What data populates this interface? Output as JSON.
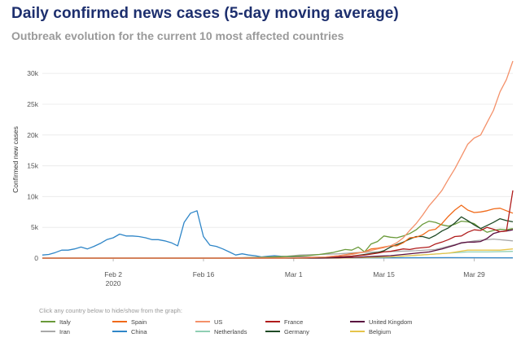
{
  "header": {
    "title": "Daily confirmed news cases (5-day moving average)",
    "subtitle": "Outbreak evolution for the current 10 most affected countries",
    "legend_hint": "Click any country below to hide/show from the graph:"
  },
  "colors": {
    "Italy": "#6a9a3a",
    "Spain": "#f06a1a",
    "US": "#f4916a",
    "France": "#b01c1c",
    "United Kingdom": "#5a1040",
    "Iran": "#a9a9a9",
    "China": "#2f86c8",
    "Netherlands": "#8fcfb4",
    "Germany": "#1f4a26",
    "Belgium": "#e6c44a"
  },
  "chart_data": {
    "type": "line",
    "title": "Daily confirmed news cases (5-day moving average)",
    "subtitle": "Outbreak evolution for the current 10 most affected countries",
    "xlabel": "",
    "ylabel": "Confirmed new cases",
    "x_ticks": [
      "Feb 2",
      "Feb 16",
      "Mar 1",
      "Mar 15",
      "Mar 29"
    ],
    "x_tick_sub": "2020",
    "y_ticks": [
      "0",
      "5k",
      "10k",
      "15k",
      "20k",
      "25k",
      "30k"
    ],
    "ylim": [
      0,
      32000
    ],
    "x_range": [
      "2020-01-22",
      "2020-04-04"
    ],
    "grid": "horizontal",
    "legend_position": "bottom",
    "series": [
      {
        "name": "China",
        "points": [
          [
            "2020-01-22",
            500
          ],
          [
            "2020-01-23",
            600
          ],
          [
            "2020-01-24",
            900
          ],
          [
            "2020-01-25",
            1300
          ],
          [
            "2020-01-26",
            1300
          ],
          [
            "2020-01-27",
            1500
          ],
          [
            "2020-01-28",
            1800
          ],
          [
            "2020-01-29",
            1500
          ],
          [
            "2020-01-30",
            1900
          ],
          [
            "2020-01-31",
            2400
          ],
          [
            "2020-02-01",
            3000
          ],
          [
            "2020-02-02",
            3300
          ],
          [
            "2020-02-03",
            3900
          ],
          [
            "2020-02-04",
            3600
          ],
          [
            "2020-02-05",
            3600
          ],
          [
            "2020-02-06",
            3500
          ],
          [
            "2020-02-07",
            3300
          ],
          [
            "2020-02-08",
            3000
          ],
          [
            "2020-02-09",
            3000
          ],
          [
            "2020-02-10",
            2800
          ],
          [
            "2020-02-11",
            2500
          ],
          [
            "2020-02-12",
            2000
          ],
          [
            "2020-02-13",
            5800
          ],
          [
            "2020-02-14",
            7300
          ],
          [
            "2020-02-15",
            7700
          ],
          [
            "2020-02-16",
            3500
          ],
          [
            "2020-02-17",
            2100
          ],
          [
            "2020-02-18",
            1900
          ],
          [
            "2020-02-19",
            1500
          ],
          [
            "2020-02-20",
            1000
          ],
          [
            "2020-02-21",
            500
          ],
          [
            "2020-02-22",
            700
          ],
          [
            "2020-02-23",
            500
          ],
          [
            "2020-02-24",
            400
          ],
          [
            "2020-02-25",
            200
          ],
          [
            "2020-02-26",
            300
          ],
          [
            "2020-02-27",
            400
          ],
          [
            "2020-02-28",
            300
          ],
          [
            "2020-03-01",
            200
          ],
          [
            "2020-03-05",
            150
          ],
          [
            "2020-03-10",
            50
          ],
          [
            "2020-03-15",
            50
          ],
          [
            "2020-03-20",
            60
          ],
          [
            "2020-03-25",
            80
          ],
          [
            "2020-04-04",
            50
          ]
        ]
      },
      {
        "name": "Italy",
        "points": [
          [
            "2020-01-22",
            0
          ],
          [
            "2020-02-20",
            0
          ],
          [
            "2020-02-25",
            100
          ],
          [
            "2020-03-01",
            300
          ],
          [
            "2020-03-03",
            400
          ],
          [
            "2020-03-05",
            600
          ],
          [
            "2020-03-07",
            900
          ],
          [
            "2020-03-09",
            1400
          ],
          [
            "2020-03-10",
            1300
          ],
          [
            "2020-03-11",
            1800
          ],
          [
            "2020-03-12",
            1000
          ],
          [
            "2020-03-13",
            2300
          ],
          [
            "2020-03-14",
            2700
          ],
          [
            "2020-03-15",
            3600
          ],
          [
            "2020-03-16",
            3400
          ],
          [
            "2020-03-17",
            3300
          ],
          [
            "2020-03-18",
            3600
          ],
          [
            "2020-03-19",
            4000
          ],
          [
            "2020-03-20",
            4600
          ],
          [
            "2020-03-21",
            5500
          ],
          [
            "2020-03-22",
            6000
          ],
          [
            "2020-03-23",
            5800
          ],
          [
            "2020-03-24",
            5400
          ],
          [
            "2020-03-25",
            5200
          ],
          [
            "2020-03-26",
            5500
          ],
          [
            "2020-03-27",
            6000
          ],
          [
            "2020-03-28",
            5900
          ],
          [
            "2020-03-29",
            5600
          ],
          [
            "2020-03-30",
            4800
          ],
          [
            "2020-03-31",
            4200
          ],
          [
            "2020-04-01",
            4500
          ],
          [
            "2020-04-02",
            4700
          ],
          [
            "2020-04-03",
            4600
          ],
          [
            "2020-04-04",
            4800
          ]
        ]
      },
      {
        "name": "Spain",
        "points": [
          [
            "2020-01-22",
            0
          ],
          [
            "2020-02-28",
            0
          ],
          [
            "2020-03-03",
            50
          ],
          [
            "2020-03-06",
            200
          ],
          [
            "2020-03-08",
            400
          ],
          [
            "2020-03-10",
            700
          ],
          [
            "2020-03-12",
            1000
          ],
          [
            "2020-03-13",
            1500
          ],
          [
            "2020-03-14",
            1600
          ],
          [
            "2020-03-15",
            1800
          ],
          [
            "2020-03-16",
            2000
          ],
          [
            "2020-03-17",
            2000
          ],
          [
            "2020-03-18",
            2500
          ],
          [
            "2020-03-19",
            3300
          ],
          [
            "2020-03-20",
            3400
          ],
          [
            "2020-03-21",
            3800
          ],
          [
            "2020-03-22",
            4500
          ],
          [
            "2020-03-23",
            4700
          ],
          [
            "2020-03-24",
            5600
          ],
          [
            "2020-03-25",
            6800
          ],
          [
            "2020-03-26",
            7800
          ],
          [
            "2020-03-27",
            8600
          ],
          [
            "2020-03-28",
            7800
          ],
          [
            "2020-03-29",
            7400
          ],
          [
            "2020-03-30",
            7500
          ],
          [
            "2020-03-31",
            7700
          ],
          [
            "2020-04-01",
            8000
          ],
          [
            "2020-04-02",
            8100
          ],
          [
            "2020-04-03",
            7700
          ],
          [
            "2020-04-04",
            7300
          ]
        ]
      },
      {
        "name": "US",
        "points": [
          [
            "2020-01-22",
            0
          ],
          [
            "2020-02-28",
            0
          ],
          [
            "2020-03-02",
            100
          ],
          [
            "2020-03-06",
            200
          ],
          [
            "2020-03-08",
            400
          ],
          [
            "2020-03-10",
            600
          ],
          [
            "2020-03-12",
            1000
          ],
          [
            "2020-03-14",
            1500
          ],
          [
            "2020-03-15",
            1700
          ],
          [
            "2020-03-16",
            2000
          ],
          [
            "2020-03-17",
            2500
          ],
          [
            "2020-03-18",
            3300
          ],
          [
            "2020-03-19",
            4500
          ],
          [
            "2020-03-20",
            5600
          ],
          [
            "2020-03-21",
            7000
          ],
          [
            "2020-03-22",
            8500
          ],
          [
            "2020-03-23",
            9700
          ],
          [
            "2020-03-24",
            11000
          ],
          [
            "2020-03-25",
            12800
          ],
          [
            "2020-03-26",
            14500
          ],
          [
            "2020-03-27",
            16500
          ],
          [
            "2020-03-28",
            18500
          ],
          [
            "2020-03-29",
            19500
          ],
          [
            "2020-03-30",
            20000
          ],
          [
            "2020-03-31",
            22000
          ],
          [
            "2020-04-01",
            24000
          ],
          [
            "2020-04-02",
            27000
          ],
          [
            "2020-04-03",
            29000
          ],
          [
            "2020-04-04",
            32000
          ]
        ]
      },
      {
        "name": "France",
        "points": [
          [
            "2020-01-22",
            0
          ],
          [
            "2020-02-28",
            0
          ],
          [
            "2020-03-03",
            100
          ],
          [
            "2020-03-07",
            200
          ],
          [
            "2020-03-10",
            300
          ],
          [
            "2020-03-12",
            500
          ],
          [
            "2020-03-14",
            800
          ],
          [
            "2020-03-15",
            1000
          ],
          [
            "2020-03-16",
            1100
          ],
          [
            "2020-03-17",
            1300
          ],
          [
            "2020-03-18",
            1500
          ],
          [
            "2020-03-19",
            1400
          ],
          [
            "2020-03-20",
            1600
          ],
          [
            "2020-03-21",
            1700
          ],
          [
            "2020-03-22",
            1800
          ],
          [
            "2020-03-23",
            2300
          ],
          [
            "2020-03-24",
            2600
          ],
          [
            "2020-03-25",
            3000
          ],
          [
            "2020-03-26",
            3500
          ],
          [
            "2020-03-27",
            3600
          ],
          [
            "2020-03-28",
            4200
          ],
          [
            "2020-03-29",
            4600
          ],
          [
            "2020-03-30",
            4500
          ],
          [
            "2020-03-31",
            5000
          ],
          [
            "2020-04-01",
            4700
          ],
          [
            "2020-04-02",
            4300
          ],
          [
            "2020-04-03",
            4400
          ],
          [
            "2020-04-04",
            11000
          ]
        ]
      },
      {
        "name": "United Kingdom",
        "points": [
          [
            "2020-01-22",
            0
          ],
          [
            "2020-03-05",
            0
          ],
          [
            "2020-03-08",
            50
          ],
          [
            "2020-03-11",
            150
          ],
          [
            "2020-03-14",
            300
          ],
          [
            "2020-03-16",
            400
          ],
          [
            "2020-03-18",
            600
          ],
          [
            "2020-03-20",
            800
          ],
          [
            "2020-03-22",
            1000
          ],
          [
            "2020-03-24",
            1500
          ],
          [
            "2020-03-25",
            1800
          ],
          [
            "2020-03-26",
            2100
          ],
          [
            "2020-03-27",
            2500
          ],
          [
            "2020-03-28",
            2600
          ],
          [
            "2020-03-29",
            2600
          ],
          [
            "2020-03-30",
            2700
          ],
          [
            "2020-03-31",
            3200
          ],
          [
            "2020-04-01",
            4000
          ],
          [
            "2020-04-02",
            4300
          ],
          [
            "2020-04-03",
            4400
          ],
          [
            "2020-04-04",
            4600
          ]
        ]
      },
      {
        "name": "Iran",
        "points": [
          [
            "2020-01-22",
            0
          ],
          [
            "2020-02-19",
            0
          ],
          [
            "2020-02-23",
            100
          ],
          [
            "2020-02-26",
            200
          ],
          [
            "2020-02-29",
            300
          ],
          [
            "2020-03-02",
            500
          ],
          [
            "2020-03-05",
            600
          ],
          [
            "2020-03-08",
            700
          ],
          [
            "2020-03-11",
            900
          ],
          [
            "2020-03-14",
            1000
          ],
          [
            "2020-03-17",
            1100
          ],
          [
            "2020-03-20",
            1200
          ],
          [
            "2020-03-23",
            1400
          ],
          [
            "2020-03-26",
            2200
          ],
          [
            "2020-03-29",
            2800
          ],
          [
            "2020-04-01",
            3100
          ],
          [
            "2020-04-04",
            2800
          ]
        ]
      },
      {
        "name": "Netherlands",
        "points": [
          [
            "2020-01-22",
            0
          ],
          [
            "2020-03-04",
            0
          ],
          [
            "2020-03-08",
            50
          ],
          [
            "2020-03-12",
            100
          ],
          [
            "2020-03-16",
            200
          ],
          [
            "2020-03-19",
            400
          ],
          [
            "2020-03-22",
            600
          ],
          [
            "2020-03-25",
            800
          ],
          [
            "2020-03-28",
            1000
          ],
          [
            "2020-03-31",
            1000
          ],
          [
            "2020-04-04",
            1100
          ]
        ]
      },
      {
        "name": "Germany",
        "points": [
          [
            "2020-01-22",
            0
          ],
          [
            "2020-03-01",
            0
          ],
          [
            "2020-03-05",
            100
          ],
          [
            "2020-03-08",
            200
          ],
          [
            "2020-03-10",
            300
          ],
          [
            "2020-03-12",
            600
          ],
          [
            "2020-03-14",
            900
          ],
          [
            "2020-03-15",
            1200
          ],
          [
            "2020-03-16",
            1800
          ],
          [
            "2020-03-17",
            2200
          ],
          [
            "2020-03-18",
            2600
          ],
          [
            "2020-03-19",
            3100
          ],
          [
            "2020-03-20",
            3500
          ],
          [
            "2020-03-21",
            3500
          ],
          [
            "2020-03-22",
            3200
          ],
          [
            "2020-03-23",
            3700
          ],
          [
            "2020-03-24",
            4400
          ],
          [
            "2020-03-25",
            4900
          ],
          [
            "2020-03-26",
            5700
          ],
          [
            "2020-03-27",
            6700
          ],
          [
            "2020-03-28",
            6100
          ],
          [
            "2020-03-29",
            5400
          ],
          [
            "2020-03-30",
            4800
          ],
          [
            "2020-03-31",
            5300
          ],
          [
            "2020-04-01",
            5800
          ],
          [
            "2020-04-02",
            6400
          ],
          [
            "2020-04-03",
            6100
          ],
          [
            "2020-04-04",
            5900
          ]
        ]
      },
      {
        "name": "Belgium",
        "points": [
          [
            "2020-01-22",
            0
          ],
          [
            "2020-03-08",
            0
          ],
          [
            "2020-03-12",
            100
          ],
          [
            "2020-03-16",
            200
          ],
          [
            "2020-03-19",
            400
          ],
          [
            "2020-03-22",
            600
          ],
          [
            "2020-03-25",
            800
          ],
          [
            "2020-03-28",
            1300
          ],
          [
            "2020-03-31",
            1300
          ],
          [
            "2020-04-02",
            1300
          ],
          [
            "2020-04-04",
            1500
          ]
        ]
      }
    ],
    "legend": [
      "Italy",
      "Spain",
      "US",
      "France",
      "United Kingdom",
      "Iran",
      "China",
      "Netherlands",
      "Germany",
      "Belgium"
    ]
  }
}
